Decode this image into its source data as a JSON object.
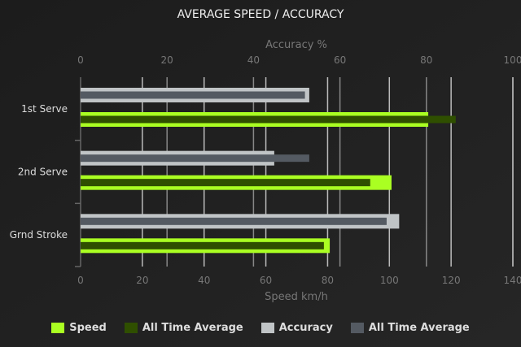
{
  "chart_data": {
    "type": "bar",
    "orientation": "horizontal",
    "title": "AVERAGE SPEED / ACCURACY",
    "categories": [
      "1st Serve",
      "2nd Serve",
      "Grnd Stroke"
    ],
    "top_axis": {
      "label": "Accuracy %",
      "range": [
        0,
        100
      ],
      "ticks": [
        0,
        20,
        40,
        60,
        80,
        100
      ]
    },
    "bottom_axis": {
      "label": "Speed km/h",
      "range": [
        0,
        140
      ],
      "ticks": [
        0,
        20,
        40,
        60,
        80,
        100,
        120,
        140
      ]
    },
    "series": [
      {
        "name": "Speed",
        "axis": "bottom",
        "color": "#aaff22",
        "values": [
          112.6,
          100.7,
          80.7
        ]
      },
      {
        "name": "All Time Average",
        "axis": "bottom",
        "color": "#2f4f00",
        "values": [
          121.5,
          93.8,
          78.8
        ]
      },
      {
        "name": "Accuracy",
        "axis": "top",
        "color": "#c0c4c6",
        "values": [
          52.9,
          44.8,
          73.7
        ]
      },
      {
        "name": "All Time Average",
        "axis": "top",
        "color": "#545a62",
        "values": [
          51.9,
          52.9,
          70.8
        ]
      }
    ],
    "grid": true,
    "legend": "bottom"
  }
}
